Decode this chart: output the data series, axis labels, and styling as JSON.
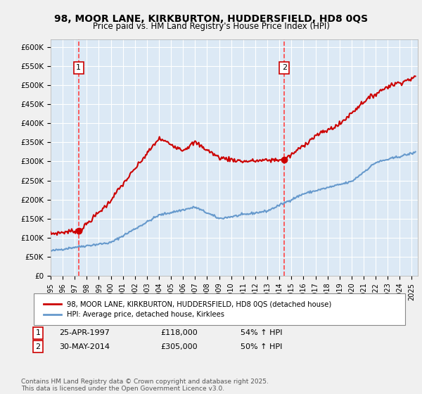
{
  "title": "98, MOOR LANE, KIRKBURTON, HUDDERSFIELD, HD8 0QS",
  "subtitle": "Price paid vs. HM Land Registry's House Price Index (HPI)",
  "ylabel_ticks": [
    "£0",
    "£50K",
    "£100K",
    "£150K",
    "£200K",
    "£250K",
    "£300K",
    "£350K",
    "£400K",
    "£450K",
    "£500K",
    "£550K",
    "£600K"
  ],
  "ytick_vals": [
    0,
    50000,
    100000,
    150000,
    200000,
    250000,
    300000,
    350000,
    400000,
    450000,
    500000,
    550000,
    600000
  ],
  "ylim": [
    0,
    620000
  ],
  "xlim_start": 1995.0,
  "xlim_end": 2025.5,
  "marker1_x": 1997.32,
  "marker1_y": 118000,
  "marker2_x": 2014.41,
  "marker2_y": 305000,
  "marker1_label": "1",
  "marker2_label": "2",
  "legend_line1": "98, MOOR LANE, KIRKBURTON, HUDDERSFIELD, HD8 0QS (detached house)",
  "legend_line2": "HPI: Average price, detached house, Kirklees",
  "table_row1": "1    25-APR-1997    £118,000    54% ↑ HPI",
  "table_row2": "2    30-MAY-2014    £305,000    50% ↑ HPI",
  "footer": "Contains HM Land Registry data © Crown copyright and database right 2025.\nThis data is licensed under the Open Government Licence v3.0.",
  "bg_color": "#dce9f5",
  "plot_bg_color": "#dce9f5",
  "grid_color": "#ffffff",
  "red_line_color": "#cc0000",
  "blue_line_color": "#6699cc",
  "vline_color": "#ff4444"
}
